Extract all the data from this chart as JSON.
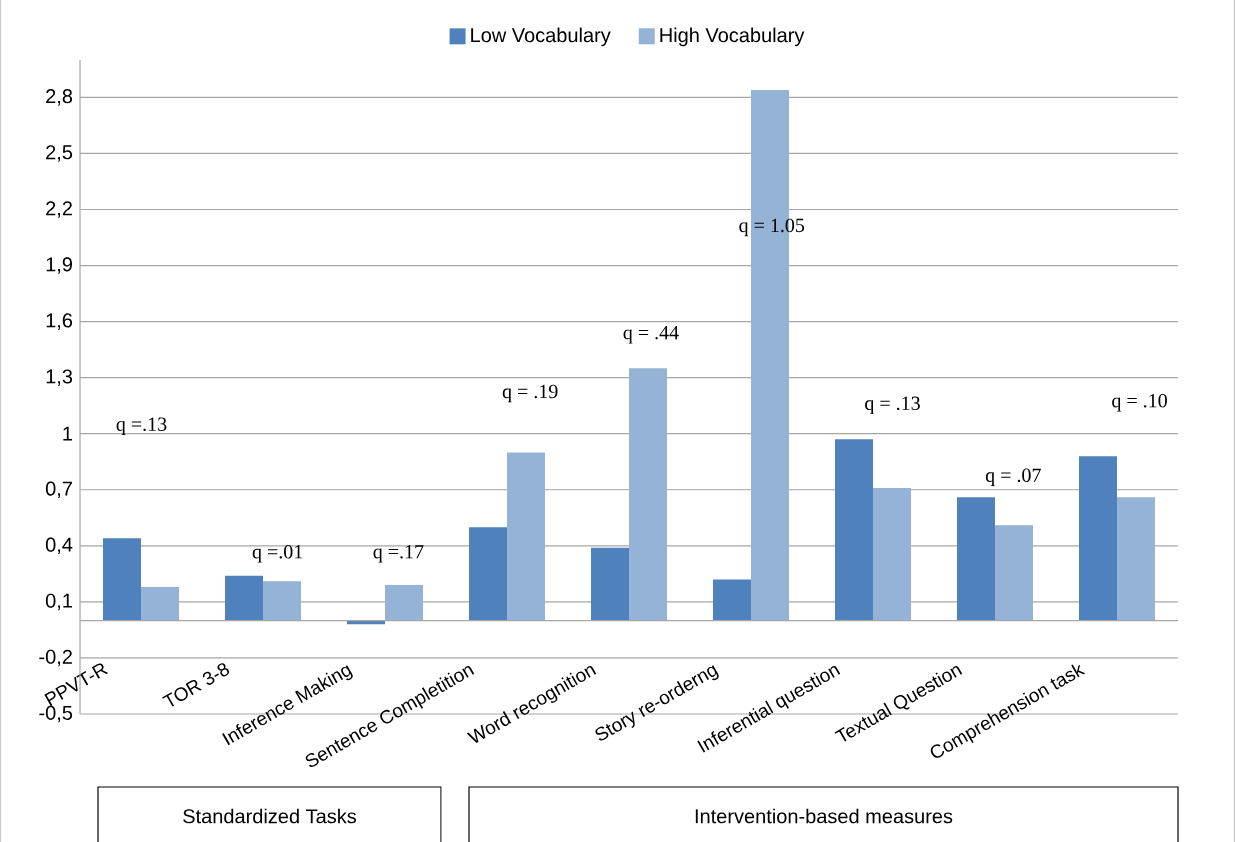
{
  "chart_data": {
    "type": "bar",
    "categories": [
      "PPVT-R",
      "TOR 3-8",
      "Inference Making",
      "Sentence Completition",
      "Word recognition",
      "Story re-orderng",
      "Inferential question",
      "Textual Question",
      "Comprehension task"
    ],
    "series": [
      {
        "name": "Low Vocabulary",
        "color": "#4f81bd",
        "values": [
          0.44,
          0.24,
          -0.02,
          0.5,
          0.39,
          0.22,
          0.97,
          0.66,
          0.88
        ]
      },
      {
        "name": "High Vocabulary",
        "color": "#95b3d7",
        "values": [
          0.18,
          0.21,
          0.19,
          0.9,
          1.35,
          2.84,
          0.71,
          0.51,
          0.66
        ]
      }
    ],
    "ylim": [
      -0.5,
      3.0
    ],
    "yticks": [
      {
        "value": -0.5,
        "label": "-0,5"
      },
      {
        "value": -0.2,
        "label": "-0,2"
      },
      {
        "value": 0.1,
        "label": "0,1"
      },
      {
        "value": 0.4,
        "label": "0,4"
      },
      {
        "value": 0.7,
        "label": "0,7"
      },
      1,
      {
        "value": 1.3,
        "label": "1,3"
      },
      {
        "value": 1.6,
        "label": "1,6"
      },
      {
        "value": 1.9,
        "label": "1,9"
      },
      {
        "value": 2.2,
        "label": "2,2"
      },
      {
        "value": 2.5,
        "label": "2,5"
      },
      {
        "value": 2.8,
        "label": "2,8"
      }
    ],
    "grid": "y",
    "legend": "top",
    "annotations": [
      "q =.13",
      "q =.01",
      "q =.17",
      "q = .19",
      "q = .44",
      "q = 1.05",
      "q = .13",
      "q = .07",
      "q = .10",
      "Standardized Tasks",
      "Intervention-based measures"
    ]
  }
}
